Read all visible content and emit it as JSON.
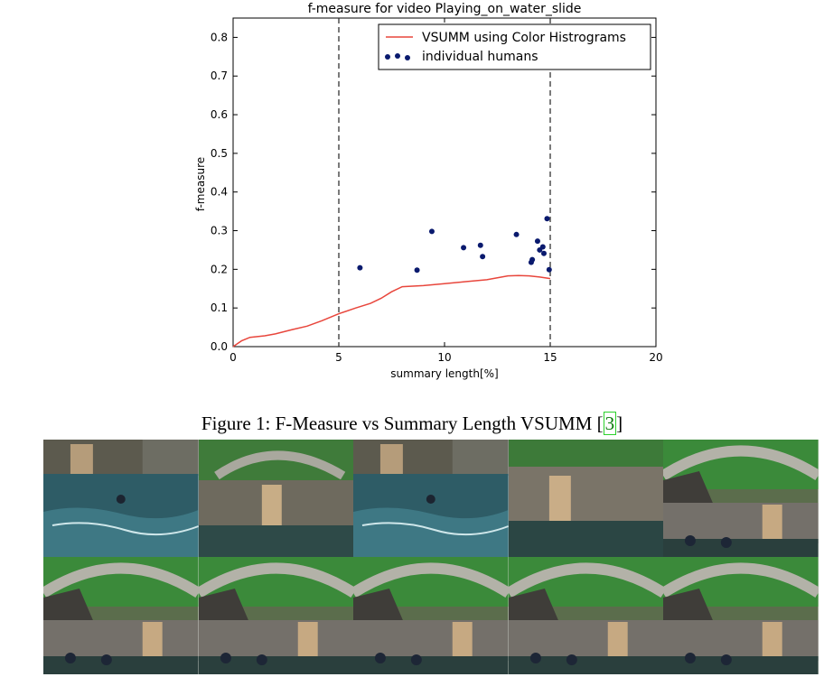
{
  "chart_data": {
    "type": "line",
    "title": "f-measure for video Playing_on_water_slide",
    "xlabel": "summary length[%]",
    "ylabel": "f-measure",
    "xlim": [
      0,
      20
    ],
    "ylim": [
      0,
      0.85
    ],
    "x_ticks": [
      "0",
      "5",
      "10",
      "15",
      "20"
    ],
    "y_ticks": [
      "0.0",
      "0.1",
      "0.2",
      "0.3",
      "0.4",
      "0.5",
      "0.6",
      "0.7",
      "0.8"
    ],
    "x_tick_values": [
      0,
      5,
      10,
      15,
      20
    ],
    "y_tick_values": [
      0.0,
      0.1,
      0.2,
      0.3,
      0.4,
      0.5,
      0.6,
      0.7,
      0.8
    ],
    "vlines": [
      5,
      15
    ],
    "legend_position": "top-right",
    "colors": {
      "line": "#e8463c",
      "scatter": "#0a1a6e",
      "vline": "#333333"
    },
    "series": [
      {
        "name": "VSUMM using Color Histrograms",
        "kind": "line",
        "x": [
          0,
          0.4,
          0.8,
          1.5,
          2.0,
          2.8,
          3.5,
          4.2,
          5.0,
          5.8,
          6.5,
          7.0,
          7.5,
          8.0,
          9.0,
          10.0,
          11.0,
          12.0,
          12.5,
          13.0,
          13.5,
          14.0,
          14.5,
          15.0
        ],
        "y": [
          0.0,
          0.015,
          0.024,
          0.028,
          0.033,
          0.044,
          0.053,
          0.067,
          0.085,
          0.1,
          0.112,
          0.125,
          0.142,
          0.155,
          0.158,
          0.163,
          0.168,
          0.173,
          0.178,
          0.183,
          0.184,
          0.183,
          0.18,
          0.176
        ]
      },
      {
        "name": "individual humans",
        "kind": "scatter",
        "x": [
          6.0,
          8.7,
          9.4,
          10.9,
          11.7,
          11.8,
          13.4,
          14.1,
          14.15,
          14.4,
          14.5,
          14.65,
          14.7,
          14.85,
          14.95
        ],
        "y": [
          0.204,
          0.198,
          0.298,
          0.256,
          0.262,
          0.233,
          0.29,
          0.218,
          0.225,
          0.273,
          0.25,
          0.258,
          0.241,
          0.331,
          0.199
        ]
      }
    ]
  },
  "caption": {
    "text": "Figure 1: F-Measure vs Summary Length VSUMM [",
    "ref": "3",
    "close": "]"
  },
  "frames": [
    "water-scene",
    "waterfall-bridge",
    "water-scene",
    "waterfall-rocks",
    "bridge-rocks",
    "bridge-rocks",
    "bridge-rocks",
    "bridge-rocks",
    "bridge-rocks",
    "bridge-rocks"
  ]
}
